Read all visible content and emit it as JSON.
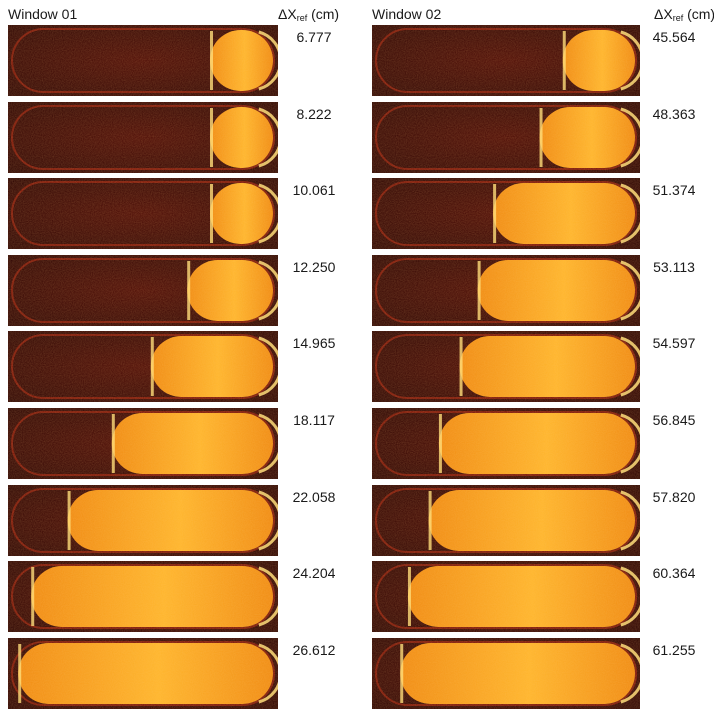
{
  "panels": [
    {
      "title": "Window 01",
      "header_symbol": "ΔX",
      "header_sub": "ref",
      "header_unit": " (cm)",
      "frames": [
        {
          "value": "6.777",
          "fill": 0.12
        },
        {
          "value": "8.222",
          "fill": 0.15
        },
        {
          "value": "10.061",
          "fill": 0.22
        },
        {
          "value": "12.250",
          "fill": 0.33
        },
        {
          "value": "14.965",
          "fill": 0.47
        },
        {
          "value": "18.117",
          "fill": 0.62
        },
        {
          "value": "22.058",
          "fill": 0.79
        },
        {
          "value": "24.204",
          "fill": 0.93
        },
        {
          "value": "26.612",
          "fill": 0.98
        }
      ]
    },
    {
      "title": "Window 02",
      "header_symbol": "ΔX",
      "header_sub": "ref",
      "header_unit": " (cm)",
      "frames": [
        {
          "value": "45.564",
          "fill": 0.28
        },
        {
          "value": "48.363",
          "fill": 0.37
        },
        {
          "value": "51.374",
          "fill": 0.55
        },
        {
          "value": "53.113",
          "fill": 0.61
        },
        {
          "value": "54.597",
          "fill": 0.68
        },
        {
          "value": "56.845",
          "fill": 0.76
        },
        {
          "value": "57.820",
          "fill": 0.8
        },
        {
          "value": "60.364",
          "fill": 0.88
        },
        {
          "value": "61.255",
          "fill": 0.91
        }
      ]
    }
  ],
  "colors": {
    "background": "#3a0503",
    "tube_outline": "#7a1408",
    "flame_outer": "#f08a10",
    "flame_inner": "#ffb52a",
    "flame_edge": "#ffe07a"
  }
}
